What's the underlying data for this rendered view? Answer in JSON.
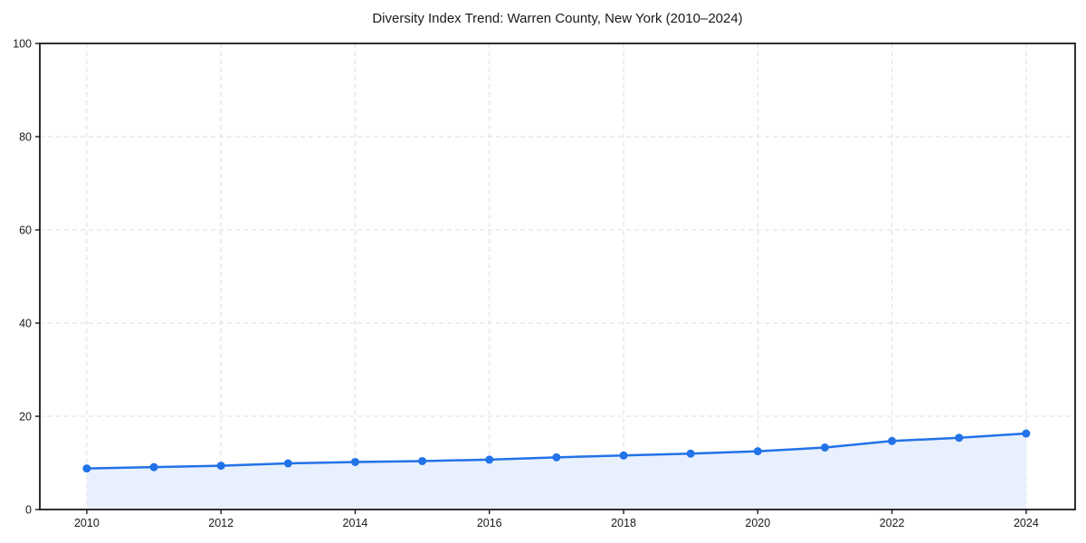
{
  "chart_data": {
    "type": "area",
    "title": "Diversity Index Trend: Warren County, New York (2010–2024)",
    "x": [
      2010,
      2011,
      2012,
      2013,
      2014,
      2015,
      2016,
      2017,
      2018,
      2019,
      2020,
      2021,
      2022,
      2023,
      2024
    ],
    "series": [
      {
        "name": "Diversity Index",
        "values": [
          8.8,
          9.1,
          9.4,
          9.9,
          10.2,
          10.4,
          10.7,
          11.2,
          11.6,
          12.0,
          12.5,
          13.3,
          14.7,
          15.4,
          16.3
        ]
      }
    ],
    "xlabel": "",
    "ylabel": "",
    "xticks": [
      2010,
      2012,
      2014,
      2016,
      2018,
      2020,
      2022,
      2024
    ],
    "yticks": [
      0,
      20,
      40,
      60,
      80,
      100
    ],
    "xlim": [
      2009.3,
      2024.73
    ],
    "ylim": [
      0,
      100
    ],
    "grid": "dashed",
    "legend_position": "none",
    "marker": "circle",
    "colors": {
      "line": "#2272e8",
      "marker": "#2272e8",
      "fill": "#e8f0fd",
      "grid": "#dedede",
      "spine": "#1a1a1a",
      "text": "#1a1a1a",
      "background": "#ffffff"
    }
  }
}
